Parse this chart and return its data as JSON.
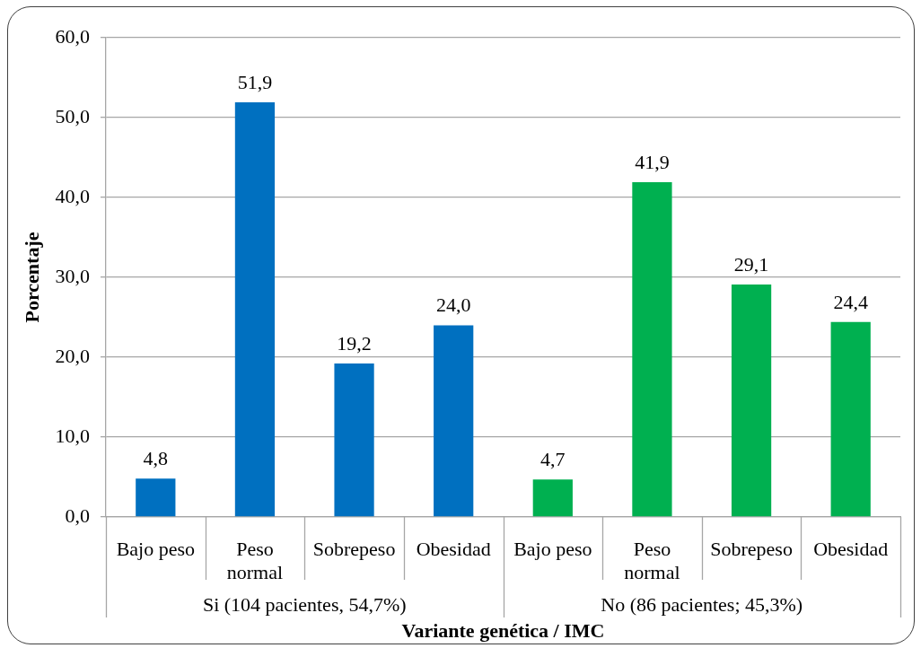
{
  "chart_data": {
    "type": "bar",
    "xlabel": "Variante genética / IMC",
    "ylabel": "Porcentaje",
    "categories": [
      "Bajo peso",
      "Peso normal",
      "Sobrepeso",
      "Obesidad",
      "Bajo peso",
      "Peso normal",
      "Sobrepeso",
      "Obesidad"
    ],
    "values": [
      4.8,
      51.9,
      19.2,
      24.0,
      4.7,
      41.9,
      29.1,
      24.4
    ],
    "colors": [
      "#0070c0",
      "#0070c0",
      "#0070c0",
      "#0070c0",
      "#00b050",
      "#00b050",
      "#00b050",
      "#00b050"
    ],
    "value_labels": [
      "4,8",
      "51,9",
      "19,2",
      "24,0",
      "4,7",
      "41,9",
      "29,1",
      "24,4"
    ],
    "annotations": [
      "Si (104 pacientes, 54,7%)",
      "No (86 pacientes; 45,3%)"
    ],
    "ylim": [
      0,
      60
    ],
    "yticks": [
      {
        "value": 0,
        "label": "0,0"
      },
      {
        "value": 10,
        "label": "10,0"
      },
      {
        "value": 20,
        "label": "20,0"
      },
      {
        "value": 30,
        "label": "30,0"
      },
      {
        "value": 40,
        "label": "40,0"
      },
      {
        "value": 50,
        "label": "50,0"
      },
      {
        "value": 60,
        "label": "60,0"
      }
    ],
    "grid": "y"
  }
}
